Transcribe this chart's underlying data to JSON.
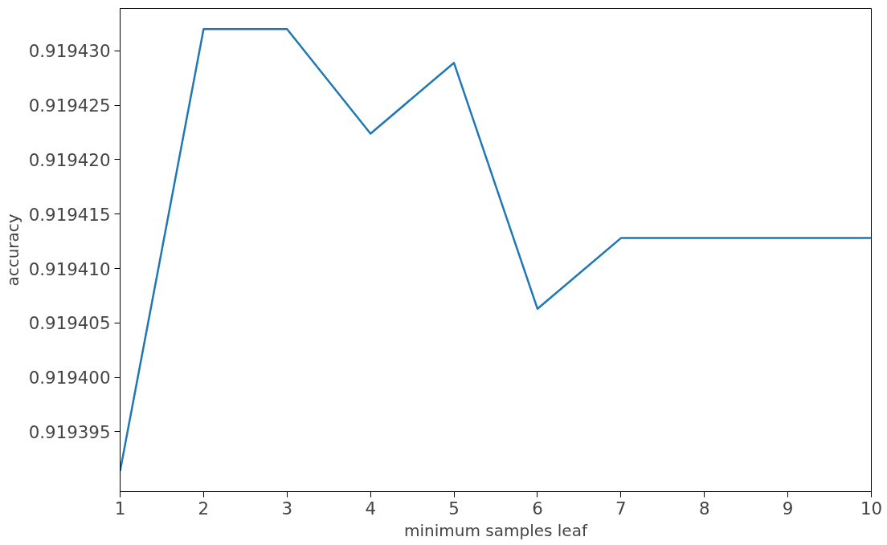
{
  "chart_data": {
    "type": "line",
    "xlabel": "minimum samples leaf",
    "ylabel": "accuracy",
    "x": [
      1,
      2,
      3,
      4,
      5,
      6,
      7,
      8,
      9,
      10
    ],
    "series": [
      {
        "color": "#1f77b4",
        "values": [
          0.9193914,
          0.919432,
          0.919432,
          0.9194224,
          0.9194289,
          0.9194063,
          0.9194128,
          0.9194128,
          0.9194128,
          0.9194128
        ]
      }
    ],
    "xlim": [
      1,
      10
    ],
    "xticks": [
      1,
      2,
      3,
      4,
      5,
      6,
      7,
      8,
      9,
      10
    ],
    "ylim": [
      0.9193895,
      0.9194339
    ],
    "yticks": [
      {
        "value": 0.919395,
        "label": "0.919395"
      },
      {
        "value": 0.9194,
        "label": "0.919400"
      },
      {
        "value": 0.919405,
        "label": "0.919405"
      },
      {
        "value": 0.91941,
        "label": "0.919410"
      },
      {
        "value": 0.919415,
        "label": "0.919415"
      },
      {
        "value": 0.91942,
        "label": "0.919420"
      },
      {
        "value": 0.919425,
        "label": "0.919425"
      },
      {
        "value": 0.91943,
        "label": "0.919430"
      }
    ],
    "grid": false,
    "marker": "none",
    "line_style": "solid"
  }
}
